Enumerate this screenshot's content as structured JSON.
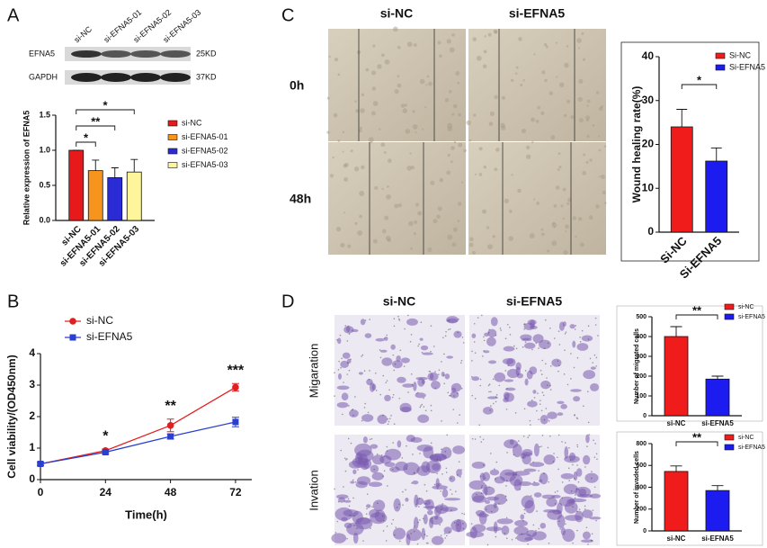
{
  "labels": [
    "A",
    "B",
    "C",
    "D"
  ],
  "blot": {
    "lanes": [
      "si-NC",
      "si-EFNA5-01",
      "si-EFNA5-02",
      "si-EFNA5-03"
    ],
    "rows": [
      {
        "name": "EFNA5",
        "size": "25KD"
      },
      {
        "name": "GAPDH",
        "size": "37KD"
      }
    ]
  },
  "wound": {
    "columns": [
      "si-NC",
      "si-EFNA5"
    ],
    "rows": [
      "0h",
      "48h"
    ]
  },
  "transwell": {
    "columns": [
      "si-NC",
      "si-EFNA5"
    ],
    "rows": [
      "Migaration",
      "Invation"
    ]
  },
  "chart_data": [
    {
      "type": "bar",
      "ylabel": "Relative expression of EFNA5",
      "categories": [
        "si-NC",
        "si-EFNA5-01",
        "si-EFNA5-02",
        "si-EFNA5-03"
      ],
      "values": [
        1,
        0.71,
        0.61,
        0.69
      ],
      "errors": [
        0,
        0.15,
        0.14,
        0.18
      ],
      "colors": [
        "#e8191b",
        "#f7941d",
        "#2b2bd6",
        "#fff59a"
      ],
      "ylim": [
        0,
        1.5
      ],
      "yticks": [
        {
          "value": 0,
          "label": "0.0"
        },
        0.5,
        {
          "value": 1,
          "label": "1.0"
        },
        1.5
      ],
      "legend": true,
      "annotations": [
        {
          "text": "*",
          "between": [
            0,
            1
          ]
        },
        {
          "text": "**",
          "between": [
            0,
            2
          ]
        },
        {
          "text": "*",
          "between": [
            0,
            3
          ]
        }
      ]
    },
    {
      "type": "line",
      "xlabel": "Time(h)",
      "ylabel": "Cell viability/(OD450nm)",
      "x": [
        0,
        24,
        48,
        72
      ],
      "series": [
        {
          "name": "si-NC",
          "color": "#e02020",
          "marker": "circle",
          "values": [
            0.5,
            0.92,
            1.72,
            2.93
          ],
          "errors": [
            0.05,
            0.05,
            0.2,
            0.12
          ]
        },
        {
          "name": "si-EFNA5",
          "color": "#2a3fd0",
          "marker": "square",
          "values": [
            0.5,
            0.87,
            1.37,
            1.83
          ],
          "errors": [
            0.05,
            0.05,
            0.08,
            0.15
          ]
        }
      ],
      "xlim": [
        0,
        78
      ],
      "xticks": [
        0,
        24,
        48,
        72
      ],
      "ylim": [
        0,
        4
      ],
      "yticks": [
        0,
        1,
        2,
        3,
        4
      ],
      "legend": true,
      "annotations": [
        {
          "text": "*",
          "x": 24
        },
        {
          "text": "**",
          "x": 48
        },
        {
          "text": "***",
          "x": 72
        }
      ]
    },
    {
      "type": "bar",
      "ylabel": "Wound healing rate(%)",
      "categories": [
        "Si-NC",
        "Si-EFNA5"
      ],
      "values": [
        24,
        16.2
      ],
      "errors": [
        4,
        3
      ],
      "colors": [
        "#f01c1c",
        "#1c1cf0"
      ],
      "ylim": [
        0,
        40
      ],
      "yticks": [
        0,
        10,
        20,
        30,
        40
      ],
      "legend": true,
      "annotations": [
        {
          "text": "*",
          "between": [
            0,
            1
          ]
        }
      ]
    },
    {
      "type": "bar",
      "ylabel": "Number of migrated cells",
      "categories": [
        "si-NC",
        "si-EFNA5"
      ],
      "values": [
        400,
        185
      ],
      "errors": [
        50,
        15
      ],
      "colors": [
        "#f01c1c",
        "#1c1cf0"
      ],
      "ylim": [
        0,
        500
      ],
      "yticks": [
        0,
        100,
        200,
        300,
        400,
        500
      ],
      "legend": true,
      "annotations": [
        {
          "text": "**",
          "between": [
            0,
            1
          ]
        }
      ]
    },
    {
      "type": "bar",
      "ylabel": "Number of invaded cells",
      "categories": [
        "si-NC",
        "si-EFNA5"
      ],
      "values": [
        545,
        370
      ],
      "errors": [
        50,
        45
      ],
      "colors": [
        "#f01c1c",
        "#1c1cf0"
      ],
      "ylim": [
        0,
        800
      ],
      "yticks": [
        0,
        200,
        400,
        600,
        800
      ],
      "legend": true,
      "annotations": [
        {
          "text": "**",
          "between": [
            0,
            1
          ]
        }
      ]
    }
  ]
}
